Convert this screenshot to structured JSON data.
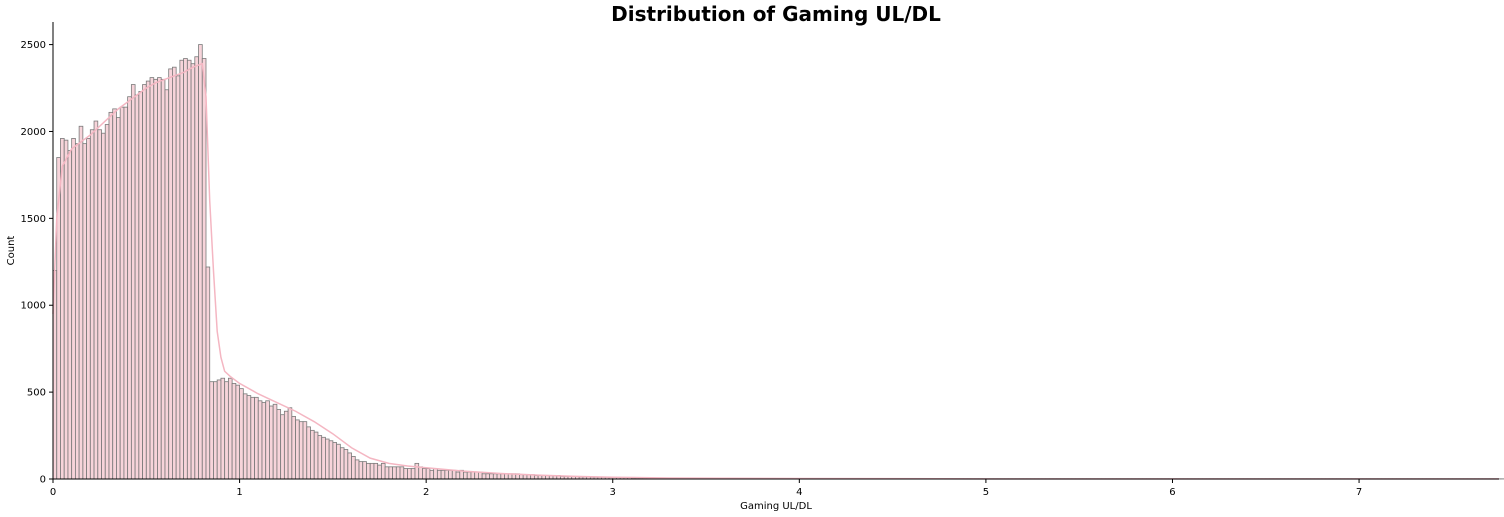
{
  "chart_data": {
    "type": "bar",
    "title": "Distribution of Gaming UL/DL",
    "xlabel": "Gaming UL/DL",
    "ylabel": "Count",
    "xlim": [
      0,
      7.75
    ],
    "ylim": [
      0,
      2630
    ],
    "x_ticks": [
      "0",
      "1",
      "2",
      "3",
      "4",
      "5",
      "6",
      "7"
    ],
    "y_ticks": [
      "0",
      "500",
      "1000",
      "1500",
      "2000",
      "2500"
    ],
    "grid": false,
    "bin_width": 0.02,
    "bin_start": 0,
    "bin_counts": [
      1200,
      1850,
      1960,
      1950,
      1890,
      1960,
      1930,
      2030,
      1930,
      1960,
      2010,
      2060,
      2010,
      1990,
      2040,
      2110,
      2130,
      2080,
      2140,
      2140,
      2200,
      2270,
      2210,
      2230,
      2270,
      2290,
      2310,
      2300,
      2310,
      2300,
      2240,
      2360,
      2370,
      2320,
      2410,
      2420,
      2410,
      2390,
      2430,
      2500,
      2420,
      1220,
      560,
      560,
      570,
      580,
      560,
      580,
      550,
      540,
      520,
      490,
      480,
      470,
      470,
      450,
      440,
      450,
      420,
      430,
      400,
      370,
      390,
      410,
      360,
      340,
      330,
      330,
      300,
      280,
      270,
      250,
      240,
      230,
      220,
      210,
      200,
      180,
      170,
      150,
      130,
      110,
      100,
      100,
      90,
      90,
      90,
      80,
      90,
      70,
      70,
      70,
      70,
      70,
      60,
      60,
      60,
      90,
      70,
      60,
      60,
      50,
      60,
      50,
      50,
      50,
      50,
      50,
      40,
      50,
      40,
      40,
      40,
      40,
      40,
      30,
      30,
      30,
      30,
      30,
      30,
      30,
      30,
      30,
      30,
      25,
      25,
      25,
      25,
      20,
      20,
      20,
      20,
      20,
      20,
      20,
      15,
      15,
      15,
      15,
      15,
      12,
      12,
      12,
      10,
      10,
      10,
      10,
      10,
      8,
      8,
      8,
      8,
      8,
      8,
      6,
      6,
      6,
      6,
      6,
      6,
      6,
      6,
      6,
      6,
      5,
      5,
      5,
      5,
      5,
      4,
      4,
      4,
      4,
      4,
      4,
      4,
      3,
      3,
      3,
      3,
      3,
      3,
      3,
      3,
      3,
      3,
      2,
      2,
      2,
      2,
      2,
      2,
      2,
      2,
      2,
      2,
      2,
      2,
      2,
      2,
      2,
      2,
      2,
      2,
      1,
      1,
      1,
      1,
      1,
      1,
      1,
      1,
      1,
      1,
      1,
      1,
      1,
      1,
      1,
      1,
      1,
      1,
      1,
      1,
      1,
      1,
      1,
      1,
      1,
      1,
      1,
      1,
      1,
      1,
      1,
      1,
      1,
      1,
      1,
      1,
      1,
      1,
      1,
      1,
      1,
      1,
      1,
      1,
      1,
      1,
      1,
      1,
      1,
      1,
      1,
      1,
      1,
      1,
      1,
      1,
      1,
      1,
      1,
      1,
      1,
      1,
      1,
      1,
      1,
      1,
      1,
      1,
      1,
      1,
      1,
      1,
      1,
      1,
      1,
      1,
      1,
      1,
      1,
      1,
      1,
      1,
      1,
      1,
      1,
      1,
      1,
      1,
      1,
      1,
      1,
      1,
      1,
      1,
      1,
      1,
      1,
      1,
      1,
      1,
      1,
      1,
      1,
      1,
      1,
      1,
      1,
      1,
      1,
      1,
      1,
      1,
      1,
      1,
      1,
      1,
      1,
      1,
      1,
      1,
      1,
      1,
      1,
      1,
      1,
      1,
      1,
      1,
      1,
      1,
      1,
      1,
      1,
      1,
      1,
      1,
      1,
      1,
      1,
      1,
      1,
      1,
      1,
      1,
      1,
      1,
      1,
      1,
      1,
      1,
      1,
      1,
      1,
      1,
      1,
      1,
      1,
      1,
      1,
      1,
      1,
      1,
      1,
      1,
      1,
      1,
      1,
      1,
      1,
      1,
      1,
      1,
      1,
      1,
      1,
      1,
      1,
      1,
      1,
      1,
      1,
      1,
      1,
      1,
      1,
      1,
      1,
      1,
      1,
      1,
      1,
      1,
      1,
      1,
      1
    ],
    "kde": {
      "x": [
        0,
        0.02,
        0.05,
        0.1,
        0.15,
        0.2,
        0.25,
        0.3,
        0.35,
        0.4,
        0.45,
        0.5,
        0.55,
        0.6,
        0.65,
        0.7,
        0.75,
        0.8,
        0.82,
        0.84,
        0.86,
        0.88,
        0.9,
        0.92,
        0.95,
        1.0,
        1.1,
        1.2,
        1.3,
        1.4,
        1.5,
        1.6,
        1.7,
        1.8,
        1.9,
        2.0,
        2.2,
        2.4,
        2.6,
        2.8,
        3.0,
        3.3,
        3.6,
        4.0,
        4.5,
        5.0,
        6.0,
        7.0,
        7.75
      ],
      "y": [
        950,
        1500,
        1800,
        1900,
        1940,
        1980,
        2030,
        2080,
        2130,
        2170,
        2210,
        2250,
        2280,
        2300,
        2320,
        2340,
        2370,
        2390,
        2200,
        1600,
        1200,
        850,
        700,
        620,
        590,
        550,
        490,
        440,
        390,
        330,
        260,
        180,
        120,
        90,
        75,
        65,
        45,
        32,
        22,
        15,
        10,
        6,
        4,
        3,
        2,
        1,
        1,
        1,
        1
      ]
    },
    "colors": {
      "bar_fill": "#f4c2cb",
      "bar_edge": "#7a7a7a",
      "kde_line": "#f4b6c2",
      "axis": "#000000"
    }
  }
}
